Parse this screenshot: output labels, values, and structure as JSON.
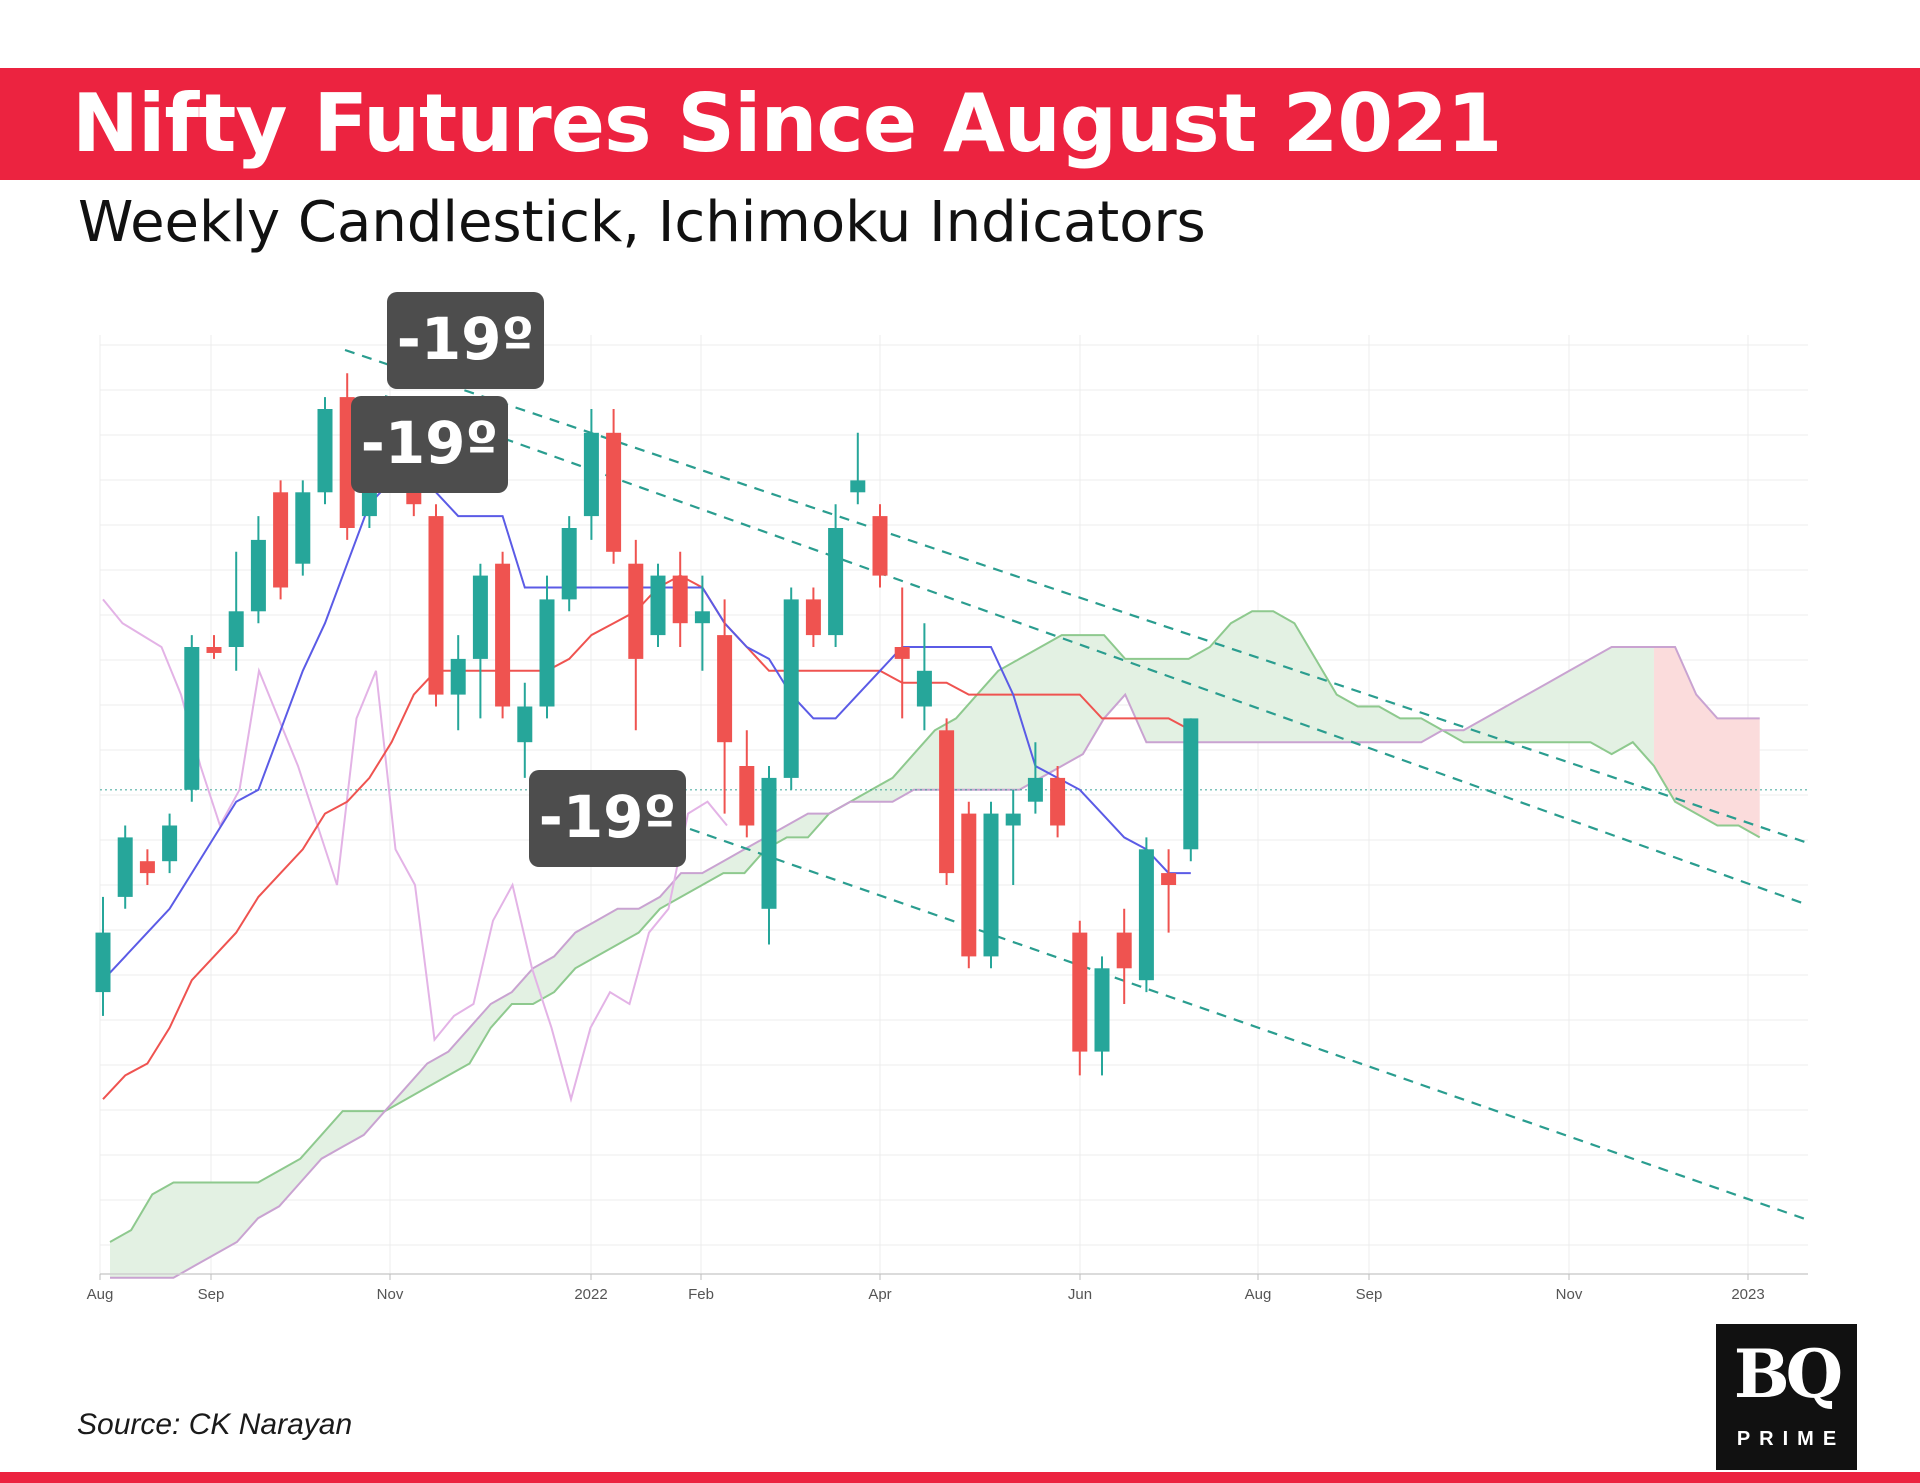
{
  "header": {
    "title": "Nifty Futures Since August 2021",
    "subtitle": "Weekly Candlestick, Ichimoku Indicators"
  },
  "footer": {
    "source": "Source: CK Narayan",
    "logo_main": "BQ",
    "logo_sub": "PRIME"
  },
  "colors": {
    "banner": "#ec2340",
    "bull": "#26a69a",
    "bear": "#ef5350",
    "tenkan": "#5b5be6",
    "kijun": "#ef5350",
    "chikou": "#e3b3e6",
    "span_a": "#8ec98e",
    "span_b": "#c9a3d1",
    "cloud_bull": "#e3f1e3",
    "cloud_bear": "#fbdcdc",
    "trendline": "#2a9d8f",
    "annotation_bg": "#4d4d4d"
  },
  "chart_data": {
    "type": "candlestick",
    "interval": "weekly",
    "indicators": [
      "Ichimoku Cloud"
    ],
    "x_ticks": [
      "Aug",
      "Sep",
      "Nov",
      "2022",
      "Feb",
      "Apr",
      "Jun",
      "Aug",
      "Sep",
      "Nov",
      "2023"
    ],
    "y_axis_labels_visible": false,
    "grid": true,
    "candles": [
      {
        "dir": "up",
        "open": 0.21,
        "close": 0.26,
        "high": 0.29,
        "low": 0.19
      },
      {
        "dir": "up",
        "open": 0.29,
        "close": 0.34,
        "high": 0.35,
        "low": 0.28
      },
      {
        "dir": "down",
        "open": 0.32,
        "close": 0.31,
        "high": 0.33,
        "low": 0.3
      },
      {
        "dir": "up",
        "open": 0.32,
        "close": 0.35,
        "high": 0.36,
        "low": 0.31
      },
      {
        "dir": "up",
        "open": 0.38,
        "close": 0.5,
        "high": 0.51,
        "low": 0.37
      },
      {
        "dir": "down",
        "open": 0.5,
        "close": 0.495,
        "high": 0.51,
        "low": 0.49
      },
      {
        "dir": "up",
        "open": 0.5,
        "close": 0.53,
        "high": 0.58,
        "low": 0.48
      },
      {
        "dir": "up",
        "open": 0.53,
        "close": 0.59,
        "high": 0.61,
        "low": 0.52
      },
      {
        "dir": "down",
        "open": 0.63,
        "close": 0.55,
        "high": 0.64,
        "low": 0.54
      },
      {
        "dir": "up",
        "open": 0.57,
        "close": 0.63,
        "high": 0.64,
        "low": 0.56
      },
      {
        "dir": "up",
        "open": 0.63,
        "close": 0.7,
        "high": 0.71,
        "low": 0.62
      },
      {
        "dir": "down",
        "open": 0.71,
        "close": 0.6,
        "high": 0.73,
        "low": 0.59
      },
      {
        "dir": "up",
        "open": 0.61,
        "close": 0.66,
        "high": 0.7,
        "low": 0.6
      },
      {
        "dir": "up",
        "open": 0.64,
        "close": 0.67,
        "high": 0.69,
        "low": 0.63
      },
      {
        "dir": "down",
        "open": 0.68,
        "close": 0.62,
        "high": 0.69,
        "low": 0.61
      },
      {
        "dir": "down",
        "open": 0.61,
        "close": 0.46,
        "high": 0.62,
        "low": 0.45
      },
      {
        "dir": "up",
        "open": 0.46,
        "close": 0.49,
        "high": 0.51,
        "low": 0.43
      },
      {
        "dir": "up",
        "open": 0.49,
        "close": 0.56,
        "high": 0.57,
        "low": 0.44
      },
      {
        "dir": "down",
        "open": 0.57,
        "close": 0.45,
        "high": 0.58,
        "low": 0.44
      },
      {
        "dir": "up",
        "open": 0.42,
        "close": 0.45,
        "high": 0.47,
        "low": 0.39
      },
      {
        "dir": "up",
        "open": 0.45,
        "close": 0.54,
        "high": 0.56,
        "low": 0.44
      },
      {
        "dir": "up",
        "open": 0.54,
        "close": 0.6,
        "high": 0.61,
        "low": 0.53
      },
      {
        "dir": "up",
        "open": 0.61,
        "close": 0.68,
        "high": 0.7,
        "low": 0.59
      },
      {
        "dir": "down",
        "open": 0.68,
        "close": 0.58,
        "high": 0.7,
        "low": 0.57
      },
      {
        "dir": "down",
        "open": 0.57,
        "close": 0.49,
        "high": 0.59,
        "low": 0.43
      },
      {
        "dir": "up",
        "open": 0.51,
        "close": 0.56,
        "high": 0.57,
        "low": 0.5
      },
      {
        "dir": "down",
        "open": 0.56,
        "close": 0.52,
        "high": 0.58,
        "low": 0.5
      },
      {
        "dir": "up",
        "open": 0.52,
        "close": 0.53,
        "high": 0.56,
        "low": 0.48
      },
      {
        "dir": "down",
        "open": 0.51,
        "close": 0.42,
        "high": 0.54,
        "low": 0.36
      },
      {
        "dir": "down",
        "open": 0.4,
        "close": 0.35,
        "high": 0.43,
        "low": 0.34
      },
      {
        "dir": "up",
        "open": 0.28,
        "close": 0.39,
        "high": 0.4,
        "low": 0.25
      },
      {
        "dir": "up",
        "open": 0.39,
        "close": 0.54,
        "high": 0.55,
        "low": 0.38
      },
      {
        "dir": "down",
        "open": 0.54,
        "close": 0.51,
        "high": 0.55,
        "low": 0.5
      },
      {
        "dir": "up",
        "open": 0.51,
        "close": 0.6,
        "high": 0.62,
        "low": 0.5
      },
      {
        "dir": "up",
        "open": 0.63,
        "close": 0.64,
        "high": 0.68,
        "low": 0.62
      },
      {
        "dir": "down",
        "open": 0.61,
        "close": 0.56,
        "high": 0.62,
        "low": 0.55
      },
      {
        "dir": "down",
        "open": 0.5,
        "close": 0.49,
        "high": 0.55,
        "low": 0.44
      },
      {
        "dir": "up",
        "open": 0.45,
        "close": 0.48,
        "high": 0.52,
        "low": 0.43
      },
      {
        "dir": "down",
        "open": 0.43,
        "close": 0.31,
        "high": 0.44,
        "low": 0.3
      },
      {
        "dir": "down",
        "open": 0.36,
        "close": 0.24,
        "high": 0.37,
        "low": 0.23
      },
      {
        "dir": "up",
        "open": 0.24,
        "close": 0.36,
        "high": 0.37,
        "low": 0.23
      },
      {
        "dir": "up",
        "open": 0.35,
        "close": 0.36,
        "high": 0.38,
        "low": 0.3
      },
      {
        "dir": "up",
        "open": 0.37,
        "close": 0.39,
        "high": 0.42,
        "low": 0.36
      },
      {
        "dir": "down",
        "open": 0.39,
        "close": 0.35,
        "high": 0.4,
        "low": 0.34
      },
      {
        "dir": "down",
        "open": 0.26,
        "close": 0.16,
        "high": 0.27,
        "low": 0.14
      },
      {
        "dir": "up",
        "open": 0.16,
        "close": 0.23,
        "high": 0.24,
        "low": 0.14
      },
      {
        "dir": "down",
        "open": 0.26,
        "close": 0.23,
        "high": 0.28,
        "low": 0.2
      },
      {
        "dir": "up",
        "open": 0.22,
        "close": 0.33,
        "high": 0.34,
        "low": 0.21
      },
      {
        "dir": "down",
        "open": 0.31,
        "close": 0.3,
        "high": 0.33,
        "low": 0.26
      },
      {
        "dir": "up",
        "open": 0.33,
        "close": 0.44,
        "high": 0.44,
        "low": 0.32
      }
    ],
    "tenkan_sen": [
      0.22,
      0.24,
      0.26,
      0.28,
      0.31,
      0.34,
      0.37,
      0.38,
      0.43,
      0.48,
      0.52,
      0.57,
      0.62,
      0.64,
      0.64,
      0.63,
      0.61,
      0.61,
      0.61,
      0.55,
      0.55,
      0.55,
      0.55,
      0.55,
      0.55,
      0.55,
      0.55,
      0.55,
      0.52,
      0.5,
      0.49,
      0.46,
      0.44,
      0.44,
      0.46,
      0.48,
      0.5,
      0.5,
      0.5,
      0.5,
      0.5,
      0.46,
      0.4,
      0.39,
      0.38,
      0.36,
      0.34,
      0.33,
      0.31,
      0.31
    ],
    "kijun_sen": [
      0.12,
      0.14,
      0.15,
      0.18,
      0.22,
      0.24,
      0.26,
      0.29,
      0.31,
      0.33,
      0.36,
      0.37,
      0.39,
      0.42,
      0.46,
      0.48,
      0.48,
      0.48,
      0.48,
      0.48,
      0.48,
      0.49,
      0.51,
      0.52,
      0.53,
      0.55,
      0.56,
      0.55,
      0.52,
      0.5,
      0.48,
      0.48,
      0.48,
      0.48,
      0.48,
      0.48,
      0.47,
      0.47,
      0.47,
      0.46,
      0.46,
      0.46,
      0.46,
      0.46,
      0.46,
      0.44,
      0.44,
      0.44,
      0.44,
      0.43
    ],
    "chikou_span": [
      0.54,
      0.52,
      0.51,
      0.5,
      0.46,
      0.4,
      0.35,
      0.38,
      0.48,
      0.44,
      0.4,
      0.35,
      0.3,
      0.44,
      0.48,
      0.33,
      0.3,
      0.17,
      0.19,
      0.2,
      0.27,
      0.3,
      0.23,
      0.18,
      0.12,
      0.18,
      0.21,
      0.2,
      0.26,
      0.28,
      0.36,
      0.37,
      0.35
    ],
    "senkou_span_a": [
      0.0,
      0.01,
      0.04,
      0.05,
      0.05,
      0.05,
      0.05,
      0.05,
      0.06,
      0.07,
      0.09,
      0.11,
      0.11,
      0.11,
      0.12,
      0.13,
      0.14,
      0.15,
      0.18,
      0.2,
      0.2,
      0.21,
      0.23,
      0.24,
      0.25,
      0.26,
      0.28,
      0.29,
      0.3,
      0.31,
      0.31,
      0.33,
      0.34,
      0.34,
      0.36,
      0.37,
      0.38,
      0.39,
      0.41,
      0.43,
      0.44,
      0.46,
      0.48,
      0.49,
      0.5,
      0.51,
      0.51,
      0.51,
      0.49,
      0.49,
      0.49,
      0.49,
      0.5,
      0.52,
      0.53,
      0.53,
      0.52,
      0.49,
      0.46,
      0.45,
      0.45,
      0.44,
      0.44,
      0.43,
      0.42,
      0.42,
      0.42,
      0.42,
      0.42,
      0.42,
      0.42,
      0.41,
      0.42,
      0.4,
      0.37,
      0.36,
      0.35,
      0.35,
      0.34
    ],
    "senkou_span_b": [
      -0.07,
      -0.06,
      -0.05,
      -0.04,
      -0.02,
      -0.01,
      0.0,
      0.02,
      0.03,
      0.05,
      0.07,
      0.08,
      0.09,
      0.11,
      0.13,
      0.15,
      0.16,
      0.18,
      0.2,
      0.21,
      0.23,
      0.24,
      0.26,
      0.27,
      0.28,
      0.28,
      0.29,
      0.31,
      0.31,
      0.32,
      0.33,
      0.34,
      0.35,
      0.36,
      0.36,
      0.37,
      0.37,
      0.37,
      0.38,
      0.38,
      0.38,
      0.38,
      0.38,
      0.38,
      0.39,
      0.4,
      0.41,
      0.44,
      0.46,
      0.42,
      0.42,
      0.42,
      0.42,
      0.42,
      0.42,
      0.42,
      0.42,
      0.42,
      0.42,
      0.42,
      0.42,
      0.42,
      0.42,
      0.43,
      0.43,
      0.44,
      0.45,
      0.46,
      0.47,
      0.48,
      0.49,
      0.5,
      0.5,
      0.5,
      0.5,
      0.46,
      0.44,
      0.44,
      0.44
    ],
    "reference_level": 0.38,
    "trendlines": [
      {
        "label": "-19º",
        "description": "upper falling resistance line"
      },
      {
        "label": "-19º",
        "description": "middle falling resistance line"
      },
      {
        "label": "-19º",
        "description": "lower falling support line"
      }
    ],
    "annotations": [
      "-19º",
      "-19º",
      "-19º"
    ]
  }
}
